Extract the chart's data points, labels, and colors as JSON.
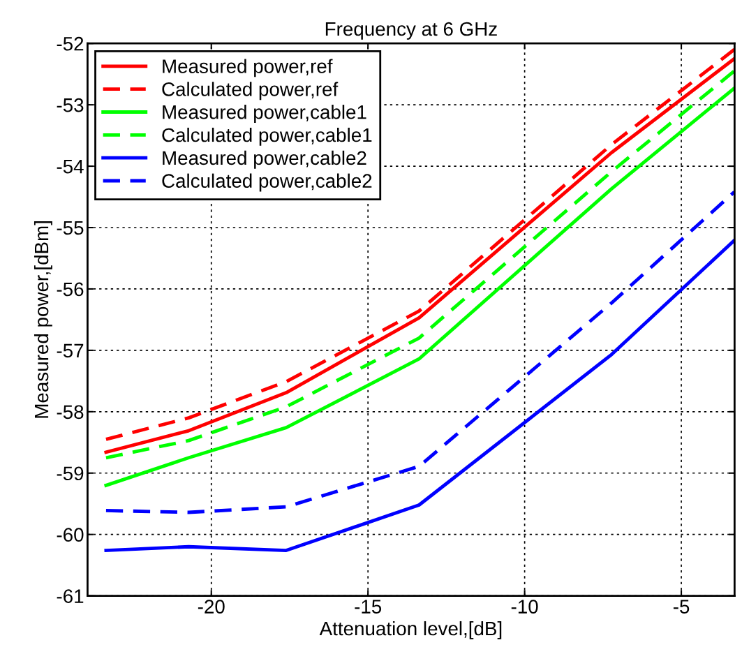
{
  "chart_data": {
    "type": "line",
    "title": "Frequency at 6 GHz",
    "xlabel": "Attenuation level,[dB]",
    "ylabel": "Measured power,[dBm]",
    "x": [
      -23.36,
      -20.72,
      -17.61,
      -13.37,
      -7.23,
      -3.31
    ],
    "series": [
      {
        "name": "Measured power,ref",
        "color": "#ff0000",
        "line_style": "solid",
        "values": [
          -58.66,
          -58.31,
          -57.69,
          -56.47,
          -53.78,
          -52.25
        ]
      },
      {
        "name": "Calculated power,ref",
        "color": "#ff0000",
        "line_style": "dashed",
        "values": [
          -58.45,
          -58.1,
          -57.51,
          -56.36,
          -53.65,
          -52.1
        ]
      },
      {
        "name": "Measured power,cable1",
        "color": "#00ff00",
        "line_style": "solid",
        "values": [
          -59.2,
          -58.75,
          -58.26,
          -57.14,
          -54.37,
          -52.73
        ]
      },
      {
        "name": "Calculated power,cable1",
        "color": "#00ff00",
        "line_style": "dashed",
        "values": [
          -58.75,
          -58.47,
          -57.92,
          -56.8,
          -54.09,
          -52.45
        ]
      },
      {
        "name": "Measured power,cable2",
        "color": "#0000ff",
        "line_style": "solid",
        "values": [
          -60.26,
          -60.2,
          -60.26,
          -59.52,
          -57.07,
          -55.21
        ]
      },
      {
        "name": "Calculated power,cable2",
        "color": "#0000ff",
        "line_style": "dashed",
        "values": [
          -59.61,
          -59.64,
          -59.55,
          -58.89,
          -56.23,
          -54.42
        ]
      }
    ],
    "xlim": [
      -23.95,
      -3.3
    ],
    "ylim": [
      -61,
      -52
    ],
    "xticks": [
      -20,
      -15,
      -10,
      -5
    ],
    "yticks": [
      -61,
      -60,
      -59,
      -58,
      -57,
      -56,
      -55,
      -54,
      -53,
      -52
    ],
    "grid": true,
    "legend": "top left",
    "marker": "none"
  }
}
